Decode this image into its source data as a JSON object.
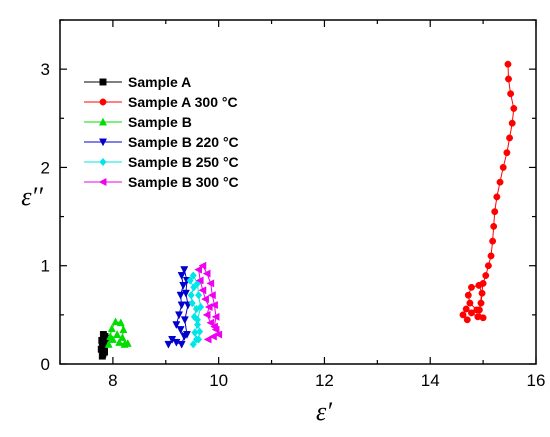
{
  "chart_data": {
    "type": "scatter",
    "xlabel": "ε′",
    "ylabel": "ε′′",
    "xlim": [
      7,
      16
    ],
    "ylim": [
      0,
      3.5
    ],
    "x_ticks": [
      8,
      10,
      12,
      14,
      16
    ],
    "y_ticks": [
      0,
      1,
      2,
      3
    ],
    "grid": false,
    "legend_position": "top-left",
    "series": [
      {
        "name": "Sample A",
        "color": "#000000",
        "marker": "square",
        "points": [
          [
            7.8,
            0.08
          ],
          [
            7.84,
            0.12
          ],
          [
            7.78,
            0.15
          ],
          [
            7.82,
            0.2
          ],
          [
            7.79,
            0.24
          ],
          [
            7.85,
            0.28
          ],
          [
            7.82,
            0.3
          ],
          [
            7.86,
            0.26
          ],
          [
            7.83,
            0.22
          ],
          [
            7.8,
            0.17
          ],
          [
            7.84,
            0.13
          ],
          [
            7.81,
            0.1
          ]
        ]
      },
      {
        "name": "Sample A 300 °C",
        "color": "#ff0000",
        "marker": "circle",
        "points": [
          [
            14.7,
            0.45
          ],
          [
            14.62,
            0.5
          ],
          [
            14.68,
            0.56
          ],
          [
            14.78,
            0.52
          ],
          [
            14.9,
            0.48
          ],
          [
            15.0,
            0.47
          ],
          [
            14.88,
            0.55
          ],
          [
            14.75,
            0.62
          ],
          [
            14.72,
            0.7
          ],
          [
            14.78,
            0.78
          ],
          [
            14.92,
            0.8
          ],
          [
            14.98,
            0.72
          ],
          [
            14.96,
            0.62
          ],
          [
            14.93,
            0.55
          ],
          [
            15.0,
            0.82
          ],
          [
            15.05,
            0.9
          ],
          [
            15.1,
            1.0
          ],
          [
            15.15,
            1.1
          ],
          [
            15.18,
            1.25
          ],
          [
            15.2,
            1.4
          ],
          [
            15.22,
            1.55
          ],
          [
            15.26,
            1.7
          ],
          [
            15.32,
            1.85
          ],
          [
            15.38,
            2.0
          ],
          [
            15.45,
            2.15
          ],
          [
            15.5,
            2.3
          ],
          [
            15.55,
            2.45
          ],
          [
            15.58,
            2.6
          ],
          [
            15.52,
            2.75
          ],
          [
            15.48,
            2.9
          ],
          [
            15.47,
            3.05
          ]
        ]
      },
      {
        "name": "Sample B",
        "color": "#00dd00",
        "marker": "triangle-up",
        "points": [
          [
            7.92,
            0.2
          ],
          [
            7.95,
            0.28
          ],
          [
            7.98,
            0.36
          ],
          [
            8.05,
            0.43
          ],
          [
            8.15,
            0.42
          ],
          [
            8.2,
            0.35
          ],
          [
            8.18,
            0.27
          ],
          [
            8.12,
            0.22
          ],
          [
            8.22,
            0.2
          ],
          [
            8.28,
            0.21
          ],
          [
            8.08,
            0.3
          ],
          [
            8.0,
            0.25
          ]
        ]
      },
      {
        "name": "Sample B 220 °C",
        "color": "#0000cc",
        "marker": "triangle-down",
        "points": [
          [
            9.05,
            0.2
          ],
          [
            9.12,
            0.25
          ],
          [
            9.2,
            0.22
          ],
          [
            9.3,
            0.2
          ],
          [
            9.35,
            0.28
          ],
          [
            9.28,
            0.35
          ],
          [
            9.2,
            0.4
          ],
          [
            9.25,
            0.5
          ],
          [
            9.3,
            0.6
          ],
          [
            9.28,
            0.7
          ],
          [
            9.33,
            0.8
          ],
          [
            9.3,
            0.9
          ],
          [
            9.35,
            0.96
          ],
          [
            9.4,
            0.85
          ],
          [
            9.38,
            0.72
          ],
          [
            9.42,
            0.6
          ],
          [
            9.36,
            0.45
          ],
          [
            9.4,
            0.3
          ]
        ]
      },
      {
        "name": "Sample B 250 °C",
        "color": "#00e5e5",
        "marker": "diamond",
        "points": [
          [
            9.52,
            0.2
          ],
          [
            9.58,
            0.25
          ],
          [
            9.55,
            0.32
          ],
          [
            9.6,
            0.4
          ],
          [
            9.54,
            0.48
          ],
          [
            9.58,
            0.56
          ],
          [
            9.5,
            0.62
          ],
          [
            9.48,
            0.7
          ],
          [
            9.53,
            0.78
          ],
          [
            9.46,
            0.85
          ],
          [
            9.52,
            0.9
          ],
          [
            9.6,
            0.82
          ],
          [
            9.62,
            0.7
          ],
          [
            9.66,
            0.58
          ],
          [
            9.6,
            0.45
          ],
          [
            9.64,
            0.33
          ],
          [
            9.62,
            0.25
          ]
        ]
      },
      {
        "name": "Sample B 300 °C",
        "color": "#ee00ee",
        "marker": "triangle-left",
        "points": [
          [
            9.8,
            0.25
          ],
          [
            9.9,
            0.28
          ],
          [
            10.0,
            0.3
          ],
          [
            9.95,
            0.35
          ],
          [
            9.85,
            0.42
          ],
          [
            9.78,
            0.5
          ],
          [
            9.82,
            0.58
          ],
          [
            9.75,
            0.66
          ],
          [
            9.7,
            0.75
          ],
          [
            9.65,
            0.85
          ],
          [
            9.62,
            0.96
          ],
          [
            9.7,
            1.0
          ],
          [
            9.78,
            0.92
          ],
          [
            9.85,
            0.82
          ],
          [
            9.88,
            0.7
          ],
          [
            9.92,
            0.6
          ],
          [
            9.95,
            0.48
          ],
          [
            9.92,
            0.38
          ]
        ]
      }
    ]
  }
}
